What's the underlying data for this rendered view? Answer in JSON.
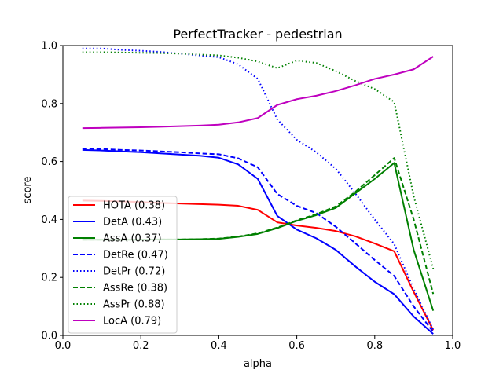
{
  "chart_data": {
    "type": "line",
    "title": "PerfectTracker - pedestrian",
    "xlabel": "alpha",
    "ylabel": "score",
    "xlim": [
      0.0,
      1.0
    ],
    "ylim": [
      0.0,
      1.0
    ],
    "xticks": [
      "0.0",
      "0.2",
      "0.4",
      "0.6",
      "0.8",
      "1.0"
    ],
    "yticks": [
      "0.0",
      "0.2",
      "0.4",
      "0.6",
      "0.8",
      "1.0"
    ],
    "grid": false,
    "legend_position": "lower-left",
    "x": [
      0.05,
      0.1,
      0.15,
      0.2,
      0.25,
      0.3,
      0.35,
      0.4,
      0.45,
      0.5,
      0.55,
      0.6,
      0.65,
      0.7,
      0.75,
      0.8,
      0.85,
      0.9,
      0.95
    ],
    "series": [
      {
        "name": "HOTA (0.38)",
        "color": "#ff0000",
        "style": "solid",
        "values": [
          0.465,
          0.464,
          0.462,
          0.46,
          0.457,
          0.455,
          0.453,
          0.451,
          0.447,
          0.433,
          0.39,
          0.379,
          0.371,
          0.36,
          0.342,
          0.317,
          0.29,
          0.15,
          0.018
        ]
      },
      {
        "name": "DetA (0.43)",
        "color": "#0000ff",
        "style": "solid",
        "values": [
          0.64,
          0.638,
          0.635,
          0.632,
          0.628,
          0.624,
          0.62,
          0.613,
          0.59,
          0.54,
          0.412,
          0.365,
          0.335,
          0.295,
          0.238,
          0.185,
          0.142,
          0.065,
          0.005
        ]
      },
      {
        "name": "AssA (0.37)",
        "color": "#008000",
        "style": "solid",
        "values": [
          0.33,
          0.33,
          0.33,
          0.33,
          0.331,
          0.331,
          0.332,
          0.333,
          0.34,
          0.35,
          0.37,
          0.395,
          0.415,
          0.44,
          0.49,
          0.54,
          0.595,
          0.295,
          0.085
        ]
      },
      {
        "name": "DetRe (0.47)",
        "color": "#0000ff",
        "style": "dashed",
        "values": [
          0.645,
          0.643,
          0.64,
          0.638,
          0.635,
          0.632,
          0.628,
          0.625,
          0.611,
          0.58,
          0.488,
          0.447,
          0.422,
          0.375,
          0.318,
          0.26,
          0.205,
          0.1,
          0.012
        ]
      },
      {
        "name": "DetPr (0.72)",
        "color": "#0000ff",
        "style": "dotted",
        "values": [
          0.99,
          0.99,
          0.985,
          0.982,
          0.978,
          0.972,
          0.966,
          0.96,
          0.935,
          0.885,
          0.745,
          0.675,
          0.632,
          0.575,
          0.49,
          0.4,
          0.315,
          0.16,
          0.02
        ]
      },
      {
        "name": "AssRe (0.38)",
        "color": "#008000",
        "style": "dashed",
        "values": [
          0.33,
          0.33,
          0.33,
          0.33,
          0.331,
          0.331,
          0.332,
          0.334,
          0.341,
          0.352,
          0.372,
          0.397,
          0.418,
          0.445,
          0.495,
          0.553,
          0.612,
          0.4,
          0.143
        ]
      },
      {
        "name": "AssPr (0.88)",
        "color": "#008000",
        "style": "dotted",
        "values": [
          0.977,
          0.977,
          0.976,
          0.975,
          0.974,
          0.972,
          0.969,
          0.966,
          0.958,
          0.945,
          0.922,
          0.948,
          0.94,
          0.912,
          0.878,
          0.85,
          0.805,
          0.48,
          0.23
        ]
      },
      {
        "name": "LocA (0.79)",
        "color": "#bf00bf",
        "style": "solid",
        "values": [
          0.715,
          0.716,
          0.717,
          0.718,
          0.72,
          0.722,
          0.724,
          0.727,
          0.735,
          0.75,
          0.795,
          0.815,
          0.827,
          0.843,
          0.863,
          0.885,
          0.9,
          0.918,
          0.962
        ]
      }
    ]
  }
}
